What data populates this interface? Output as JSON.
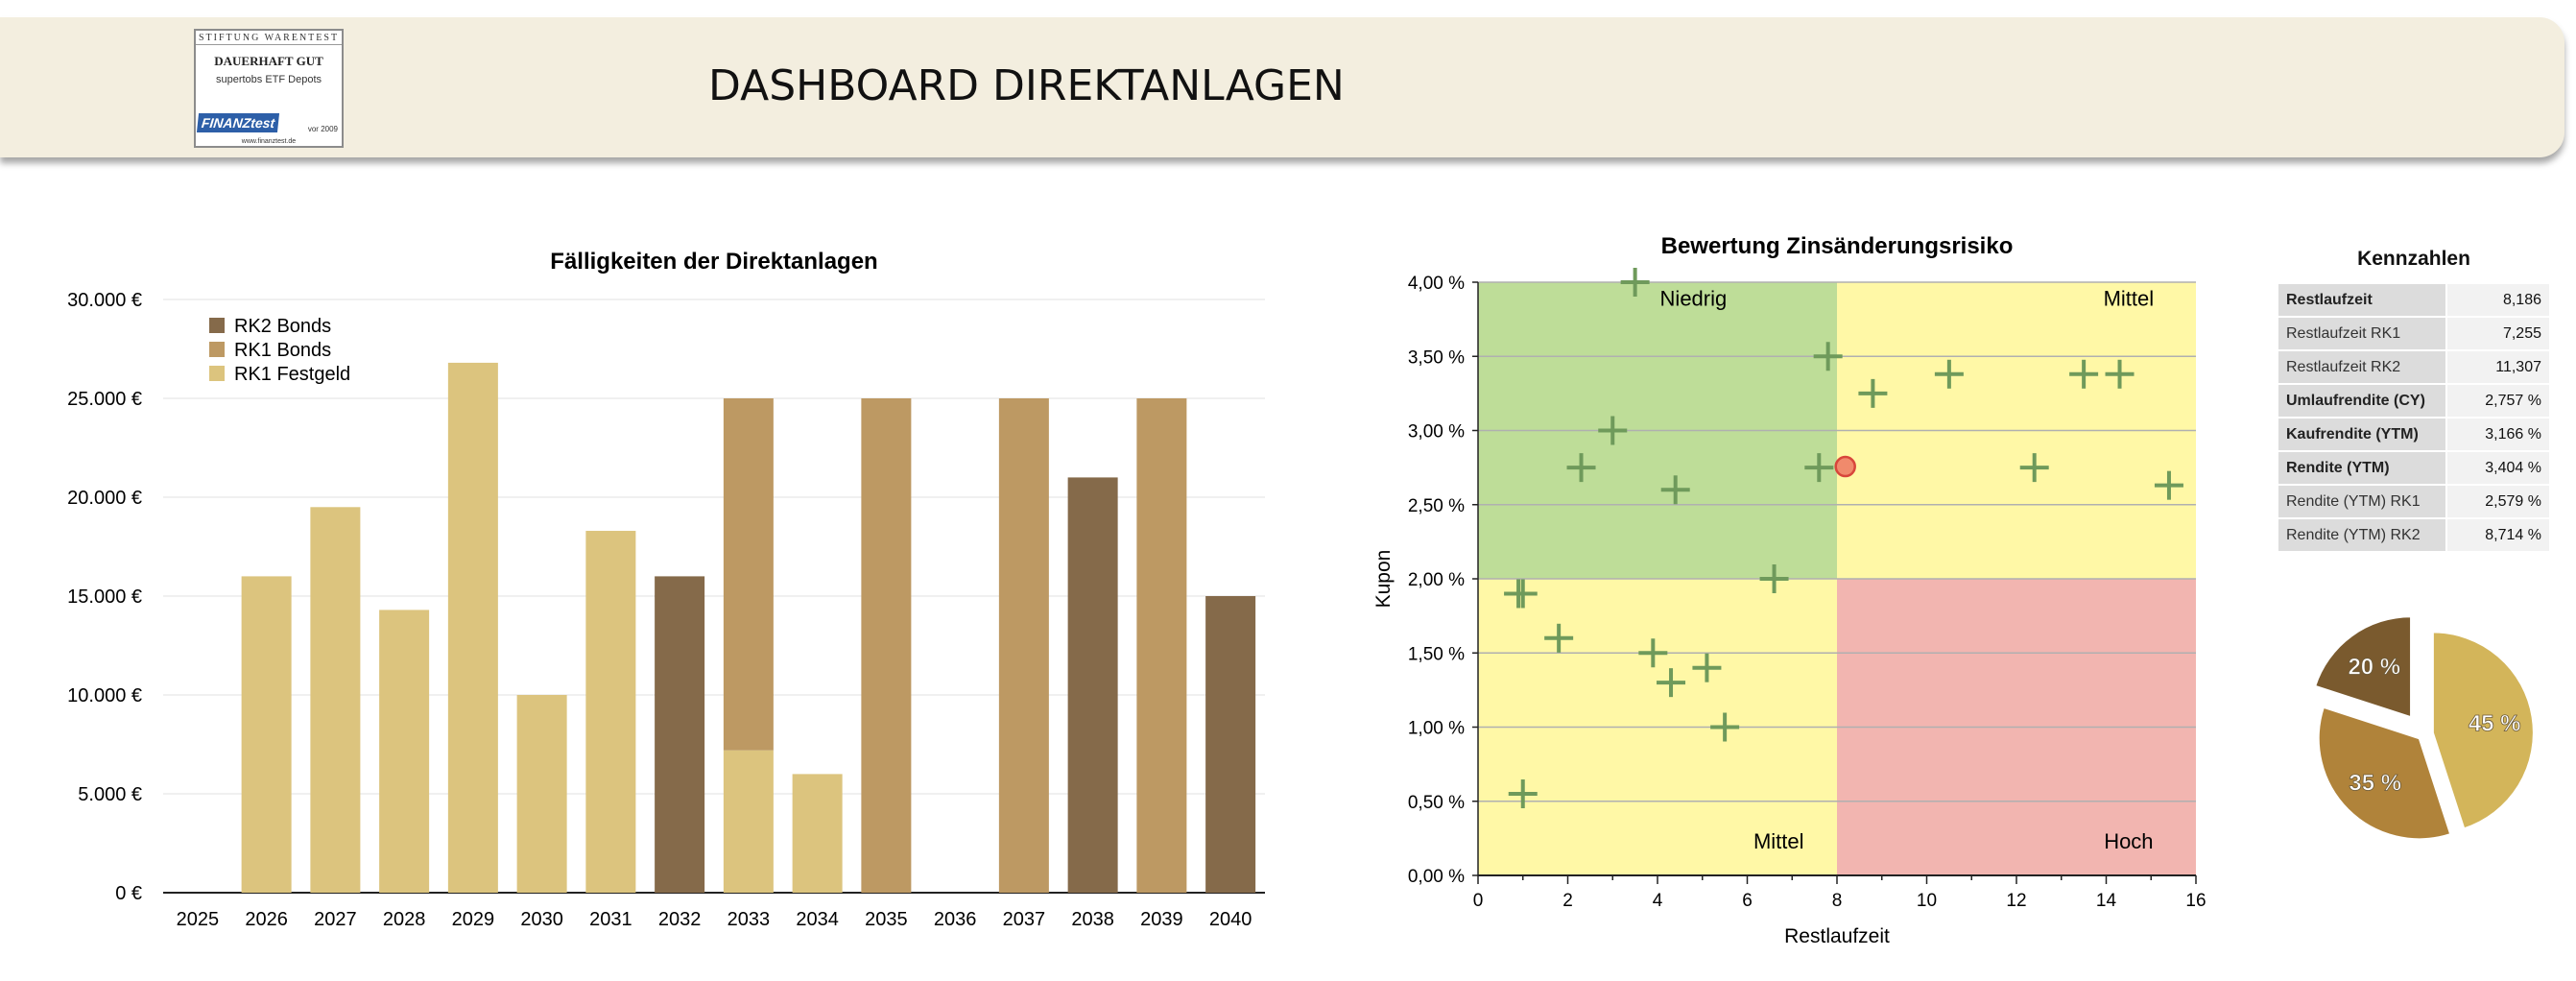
{
  "header": {
    "title": "DASHBOARD DIREKTANLAGEN",
    "badge": {
      "top": "STIFTUNG WARENTEST",
      "main": "DAUERHAFT GUT",
      "sub": "supertobs ETF Depots",
      "logo": "FINANZtest",
      "year": "vor 2009",
      "url": "www.finanztest.de"
    }
  },
  "chart_data": [
    {
      "type": "bar",
      "title": "Fälligkeiten der Direktanlagen",
      "stacked": true,
      "categories": [
        "2025",
        "2026",
        "2027",
        "2028",
        "2029",
        "2030",
        "2031",
        "2032",
        "2033",
        "2034",
        "2035",
        "2036",
        "2037",
        "2038",
        "2039",
        "2040"
      ],
      "series": [
        {
          "name": "RK1 Festgeld",
          "color": "#dcc47e",
          "values": [
            0,
            16000,
            19500,
            14300,
            26800,
            10000,
            18300,
            0,
            7200,
            6000,
            0,
            0,
            0,
            0,
            0,
            0
          ]
        },
        {
          "name": "RK1 Bonds",
          "color": "#bd9963",
          "values": [
            0,
            0,
            0,
            0,
            0,
            0,
            0,
            0,
            17800,
            0,
            25000,
            0,
            25000,
            0,
            25000,
            0
          ]
        },
        {
          "name": "RK2 Bonds",
          "color": "#856a4a",
          "values": [
            0,
            0,
            0,
            0,
            0,
            0,
            0,
            16000,
            0,
            0,
            0,
            0,
            0,
            21000,
            0,
            15000
          ]
        }
      ],
      "legend_order": [
        "RK2 Bonds",
        "RK1 Bonds",
        "RK1 Festgeld"
      ],
      "ylim": [
        0,
        30000
      ],
      "yticks": [
        0,
        5000,
        10000,
        15000,
        20000,
        25000,
        30000
      ],
      "ytick_labels": [
        "0 €",
        "5.000 €",
        "10.000 €",
        "15.000 €",
        "20.000 €",
        "25.000 €",
        "30.000 €"
      ],
      "xlabel": "",
      "ylabel": "",
      "legend": "top-left"
    },
    {
      "type": "scatter",
      "title": "Bewertung Zinsänderungsrisiko",
      "xlabel": "Restlaufzeit",
      "ylabel": "Kupon",
      "xlim": [
        0,
        16
      ],
      "ylim": [
        0,
        4
      ],
      "xticks": [
        0,
        2,
        4,
        6,
        8,
        10,
        12,
        14,
        16
      ],
      "xtick_labels": [
        "0",
        "2",
        "4",
        "6",
        "8",
        "10",
        "12",
        "14",
        "16"
      ],
      "yticks": [
        0,
        0.5,
        1,
        1.5,
        2,
        2.5,
        3,
        3.5,
        4
      ],
      "ytick_labels": [
        "0,00 %",
        "0,50 %",
        "1,00 %",
        "1,50 %",
        "2,00 %",
        "2,50 %",
        "3,00 %",
        "3,50 %",
        "4,00 %"
      ],
      "zones": [
        {
          "label": "Niedrig",
          "x": [
            0,
            8
          ],
          "y": [
            2,
            4
          ],
          "color": "#bedd98"
        },
        {
          "label": "Mittel",
          "x": [
            8,
            16
          ],
          "y": [
            2,
            4
          ],
          "color": "#fff8a6"
        },
        {
          "label": "Mittel",
          "x": [
            0,
            8
          ],
          "y": [
            0,
            2
          ],
          "color": "#fff8a6"
        },
        {
          "label": "Hoch",
          "x": [
            8,
            16
          ],
          "y": [
            0,
            2
          ],
          "color": "#f2b5b0"
        }
      ],
      "points": [
        {
          "x": 3.5,
          "y": 4.0
        },
        {
          "x": 7.8,
          "y": 3.5
        },
        {
          "x": 8.8,
          "y": 3.25
        },
        {
          "x": 10.5,
          "y": 3.38
        },
        {
          "x": 13.5,
          "y": 3.38
        },
        {
          "x": 14.3,
          "y": 3.38
        },
        {
          "x": 3.0,
          "y": 3.0
        },
        {
          "x": 2.3,
          "y": 2.75
        },
        {
          "x": 7.6,
          "y": 2.75
        },
        {
          "x": 12.4,
          "y": 2.75
        },
        {
          "x": 4.4,
          "y": 2.6
        },
        {
          "x": 15.4,
          "y": 2.63
        },
        {
          "x": 6.6,
          "y": 2.0
        },
        {
          "x": 0.9,
          "y": 1.9
        },
        {
          "x": 1.0,
          "y": 1.9
        },
        {
          "x": 1.8,
          "y": 1.6
        },
        {
          "x": 3.9,
          "y": 1.5
        },
        {
          "x": 5.1,
          "y": 1.4
        },
        {
          "x": 4.3,
          "y": 1.3
        },
        {
          "x": 5.5,
          "y": 1.0
        },
        {
          "x": 1.0,
          "y": 0.55
        }
      ],
      "highlight": {
        "x": 8.186,
        "y": 2.757,
        "color": "#f08a6c"
      }
    },
    {
      "type": "pie",
      "slices": [
        {
          "label": "45 %",
          "value": 45,
          "color": "#d3b55a"
        },
        {
          "label": "35 %",
          "value": 35,
          "color": "#b0833a"
        },
        {
          "label": "20 %",
          "value": 20,
          "color": "#7a5a2e"
        }
      ]
    }
  ],
  "kennzahlen": {
    "title": "Kennzahlen",
    "rows": [
      {
        "label": "Restlaufzeit",
        "value": "8,186",
        "bold": true
      },
      {
        "label": "Restlaufzeit RK1",
        "value": "7,255",
        "bold": false
      },
      {
        "label": "Restlaufzeit RK2",
        "value": "11,307",
        "bold": false
      },
      {
        "label": "Umlaufrendite (CY)",
        "value": "2,757 %",
        "bold": true
      },
      {
        "label": "Kaufrendite (YTM)",
        "value": "3,166 %",
        "bold": true
      },
      {
        "label": "Rendite (YTM)",
        "value": "3,404 %",
        "bold": true
      },
      {
        "label": "Rendite (YTM) RK1",
        "value": "2,579 %",
        "bold": false
      },
      {
        "label": "Rendite (YTM) RK2",
        "value": "8,714 %",
        "bold": false
      }
    ]
  }
}
